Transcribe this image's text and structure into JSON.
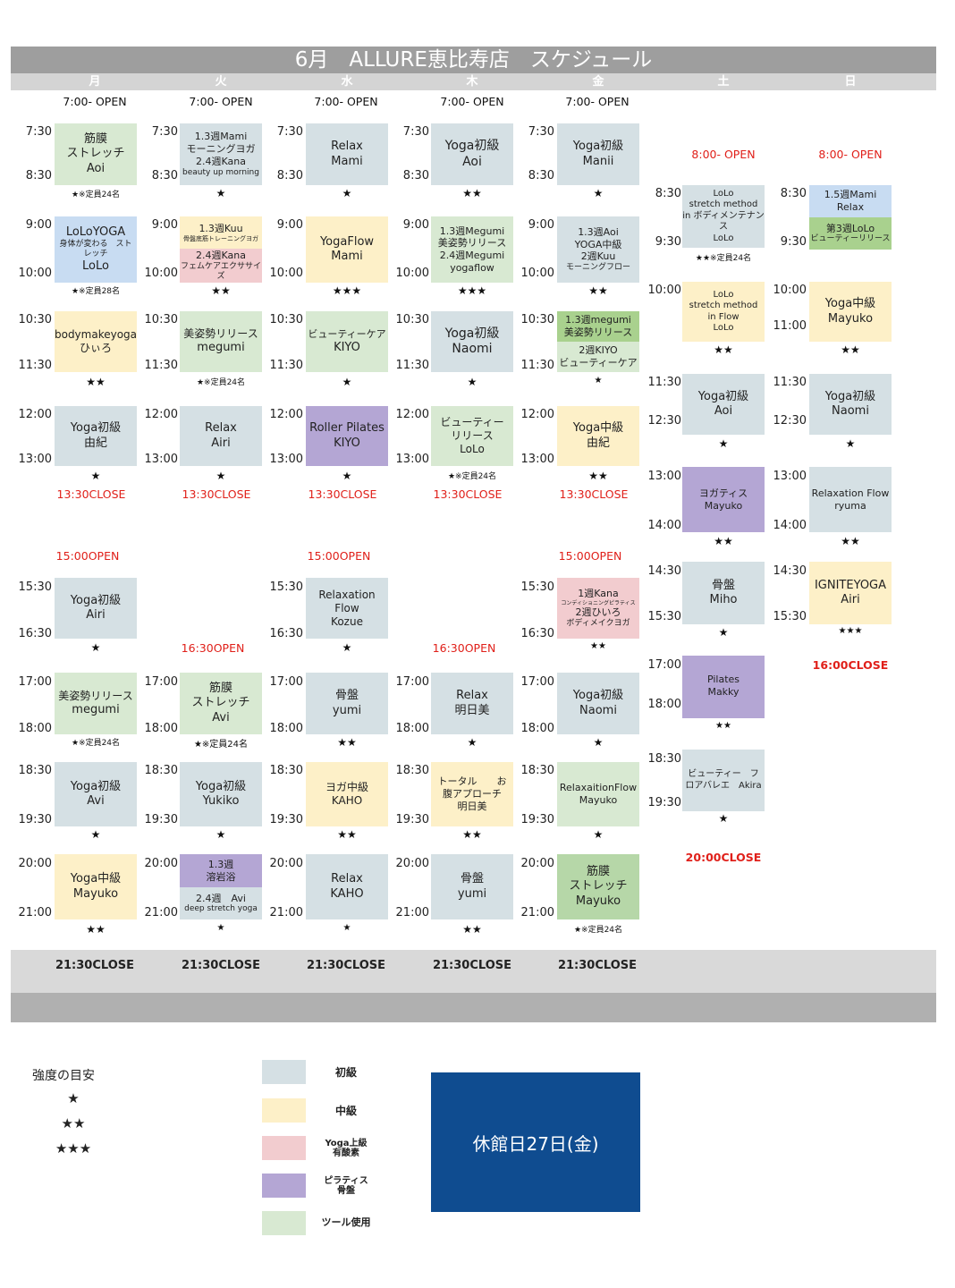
{
  "title": "6月　ALLURE恵比寿店　スケジュール",
  "days": [
    "月",
    "火",
    "水",
    "木",
    "金",
    "土",
    "日"
  ],
  "markers": {
    "open700": "7:00- OPEN",
    "open800": "8:00- OPEN",
    "close1330": "13:30CLOSE",
    "open1500": "15:00OPEN",
    "open1630": "16:30OPEN",
    "close1600": "16:00CLOSE",
    "close2000": "20:00CLOSE",
    "close2130": "21:30CLOSE"
  },
  "mon": {
    "c1": {
      "s": "7:30",
      "e": "8:30",
      "l1": "筋膜",
      "l2": "ストレッチ",
      "l3": "Aoi",
      "star": "★※定員24名"
    },
    "c2": {
      "s": "9:00",
      "e": "10:00",
      "l1": "LoLoYOGA",
      "l2": "身体が変わる　スト",
      "l3": "レッチ",
      "l4": "LoLo",
      "star": "★※定員28名"
    },
    "c3": {
      "s": "10:30",
      "e": "11:30",
      "l1": "bodymakeyoga",
      "l2": "ひぃろ",
      "star": "★★"
    },
    "c4": {
      "s": "12:00",
      "e": "13:00",
      "l1": "Yoga初級",
      "l2": "由紀",
      "star": "★"
    },
    "c5": {
      "s": "15:30",
      "e": "16:30",
      "l1": "Yoga初級",
      "l2": "Airi",
      "star": "★"
    },
    "c6": {
      "s": "17:00",
      "e": "18:00",
      "l1": "美姿勢リリース",
      "l2": "megumi",
      "star": "★※定員24名"
    },
    "c7": {
      "s": "18:30",
      "e": "19:30",
      "l1": "Yoga初級",
      "l2": "Avi",
      "star": "★"
    },
    "c8": {
      "s": "20:00",
      "e": "21:00",
      "l1": "Yoga中級",
      "l2": "Mayuko",
      "star": "★★"
    }
  },
  "tue": {
    "c1": {
      "s": "7:30",
      "e": "8:30",
      "l1": "1.3週Mami",
      "l2": "モーニングヨガ",
      "l3": "2.4週Kana",
      "l4": "beauty up morning",
      "star": "★"
    },
    "c2": {
      "s": "9:00",
      "e": "10:00",
      "l1": "1.3週Kuu",
      "l2": "骨盤底筋トレーニングヨガ",
      "l3": "2.4週Kana",
      "l4": "フェムケアエクササイズ",
      "star": "★★"
    },
    "c3": {
      "s": "10:30",
      "e": "11:30",
      "l1": "美姿勢リリース",
      "l2": "megumi",
      "star": "★※定員24名"
    },
    "c4": {
      "s": "12:00",
      "e": "13:00",
      "l1": "Relax",
      "l2": "Airi",
      "star": "★"
    },
    "c6": {
      "s": "17:00",
      "e": "18:00",
      "l1": "筋膜",
      "l2": "ストレッチ",
      "l3": "Avi",
      "star": "★※定員24名"
    },
    "c7": {
      "s": "18:30",
      "e": "19:30",
      "l1": "Yoga初級",
      "l2": "Yukiko",
      "star": "★"
    },
    "c8": {
      "s": "20:00",
      "e": "21:00",
      "l1": "1.3週",
      "l2": "溶岩浴",
      "l3": "2.4週　Avi",
      "l4": "deep stretch yoga",
      "star": "★"
    }
  },
  "wed": {
    "c1": {
      "s": "7:30",
      "e": "8:30",
      "l1": "Relax",
      "l2": "Mami",
      "star": "★"
    },
    "c2": {
      "s": "9:00",
      "e": "10:00",
      "l1": "YogaFlow",
      "l2": "Mami",
      "star": "★★★"
    },
    "c3": {
      "s": "10:30",
      "e": "11:30",
      "l1": "ビューティーケア",
      "l2": "KIYO",
      "star": "★"
    },
    "c4": {
      "s": "12:00",
      "e": "13:00",
      "l1": "Roller Pilates",
      "l2": "KIYO",
      "star": "★"
    },
    "c5": {
      "s": "15:30",
      "e": "16:30",
      "l1": "Relaxation Flow",
      "l2": "Kozue",
      "star": "★"
    },
    "c6": {
      "s": "17:00",
      "e": "18:00",
      "l1": "骨盤",
      "l2": "yumi",
      "star": "★★"
    },
    "c7": {
      "s": "18:30",
      "e": "19:30",
      "l1": "ヨガ中級　KAHO",
      "star": "★★"
    },
    "c8": {
      "s": "20:00",
      "e": "21:00",
      "l1": "Relax",
      "l2": "KAHO",
      "star": "★"
    }
  },
  "thu": {
    "c1": {
      "s": "7:30",
      "e": "8:30",
      "l1": "Yoga初級",
      "l2": "Aoi",
      "star": "★★"
    },
    "c2": {
      "s": "9:00",
      "e": "10:00",
      "l1": "1.3週Megumi",
      "l2": "美姿勢リリース",
      "l3": "2.4週Megumi",
      "l4": "yogaflow",
      "star": "★★★"
    },
    "c3": {
      "s": "10:30",
      "e": "11:30",
      "l1": "Yoga初級",
      "l2": "Naomi",
      "star": "★"
    },
    "c4": {
      "s": "12:00",
      "e": "13:00",
      "l1": "ビューティー",
      "l2": "リリース",
      "l3": "LoLo",
      "star": "★※定員24名"
    },
    "c6": {
      "s": "17:00",
      "e": "18:00",
      "l1": "Relax",
      "l2": "明日美",
      "star": "★"
    },
    "c7": {
      "s": "18:30",
      "e": "19:30",
      "l1": "トータル　　お",
      "l2": "腹アプローチ",
      "l3": "明日美",
      "star": "★★"
    },
    "c8": {
      "s": "20:00",
      "e": "21:00",
      "l1": "骨盤",
      "l2": "yumi",
      "star": "★★"
    }
  },
  "fri": {
    "c1": {
      "s": "7:30",
      "e": "8:30",
      "l1": "Yoga初級",
      "l2": "Manii",
      "star": "★"
    },
    "c2": {
      "s": "9:00",
      "e": "10:00",
      "l1": "1.3週Aoi",
      "l2": "YOGA中級",
      "l3": "2週Kuu",
      "l4": "モーニングフロー",
      "star": "★★"
    },
    "c3": {
      "s": "10:30",
      "e": "11:30",
      "l1": "1.3週megumi",
      "l2": "美姿勢リリース",
      "l3": "2週KIYO",
      "l4": "ビューティーケア",
      "star": "★"
    },
    "c4": {
      "s": "12:00",
      "e": "13:00",
      "l1": "Yoga中級",
      "l2": "由紀",
      "star": "★★"
    },
    "c5": {
      "s": "15:30",
      "e": "16:30",
      "l1": "1週Kana",
      "l2": "コンディショニングピラティス",
      "l3": "2週ひいろ",
      "l4": "ボディメイクヨガ",
      "star": "★★"
    },
    "c6": {
      "s": "17:00",
      "e": "18:00",
      "l1": "Yoga初級",
      "l2": "Naomi",
      "star": "★"
    },
    "c7": {
      "s": "18:30",
      "e": "19:30",
      "l1": "RelaxaitionFlow",
      "l2": "Mayuko",
      "star": "★"
    },
    "c8": {
      "s": "20:00",
      "e": "21:00",
      "l1": "筋膜",
      "l2": "ストレッチ",
      "l3": "Mayuko",
      "star": "★※定員24名"
    }
  },
  "sat": {
    "c1": {
      "s": "8:30",
      "e": "9:30",
      "l1": "LoLo",
      "l2": "stretch method",
      "l3": "in ボディメンテナンス",
      "l4": "LoLo",
      "star": "★★※定員24名"
    },
    "c2": {
      "s": "10:00",
      "l1": "LoLo",
      "l2": "stretch method",
      "l3": "in Flow",
      "l4": "LoLo",
      "star": "★★"
    },
    "c3": {
      "s": "11:30",
      "e": "12:30",
      "l1": "Yoga初級",
      "l2": "Aoi",
      "star": "★"
    },
    "c4": {
      "s": "13:00",
      "e": "14:00",
      "l1": "ヨガティス",
      "l2": "Mayuko",
      "star": "★★"
    },
    "c5": {
      "s": "14:30",
      "e": "15:30",
      "l1": "骨盤",
      "l2": "Miho",
      "star": "★"
    },
    "c6": {
      "s": "17:00",
      "e": "18:00",
      "l1": "Pilates",
      "l2": "Makky",
      "star": "★★"
    },
    "c7": {
      "s": "18:30",
      "e": "19:30",
      "l1": "ビューティー　フ",
      "l2": "ロアバレエ　Akira",
      "star": "★"
    }
  },
  "sun": {
    "c1": {
      "s": "8:30",
      "e": "9:30",
      "l1": "1.5週Mami",
      "l2": "Relax",
      "l3": "第3週LoLo",
      "l4": "ビューティーリリース"
    },
    "c2": {
      "s": "10:00",
      "e": "11:00",
      "l1": "Yoga中級",
      "l2": "Mayuko",
      "star": "★★"
    },
    "c3": {
      "s": "11:30",
      "e": "12:30",
      "l1": "Yoga初級",
      "l2": "Naomi",
      "star": "★"
    },
    "c4": {
      "s": "13:00",
      "e": "14:00",
      "l1": "Relaxation Flow",
      "l2": "ryuma",
      "star": "★★"
    },
    "c5": {
      "s": "14:30",
      "e": "15:30",
      "l1": "IGNITEYOGA",
      "l2": "Airi",
      "star": "★★★"
    }
  },
  "legend": {
    "title": "強度の目安",
    "s1": "★",
    "s2": "★★",
    "s3": "★★★",
    "levels": [
      {
        "label1": "初級",
        "label2": "",
        "color": "#d5e0e4"
      },
      {
        "label1": "中級",
        "label2": "",
        "color": "#fdf0c8"
      },
      {
        "label1": "Yoga上級",
        "label2": "有酸素",
        "color": "#f2cccf"
      },
      {
        "label1": "ピラティス",
        "label2": "骨盤",
        "color": "#b4a6d4"
      },
      {
        "label1": "ツール使用",
        "label2": "",
        "color": "#d8e9d2"
      }
    ]
  },
  "closed_day": "休館日27日(金)"
}
